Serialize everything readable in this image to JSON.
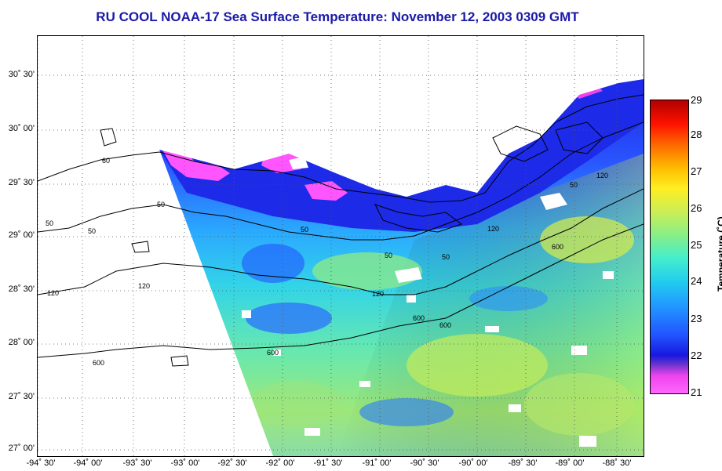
{
  "title": "RU COOL  NOAA-17  Sea Surface Temperature:  November 12, 2003 0309 GMT",
  "axes": {
    "lat_labels": [
      "30˚ 30'",
      "30˚ 00'",
      "29˚ 30'",
      "29˚ 00'",
      "28˚ 30'",
      "28˚ 00'",
      "27˚ 30'",
      "27˚ 00'"
    ],
    "lon_labels": [
      "-94˚ 30'",
      "-94˚ 00'",
      "-93˚ 30'",
      "-93˚ 00'",
      "-92˚ 30'",
      "-92˚ 00'",
      "-91˚ 30'",
      "-91˚ 00'",
      "-90˚ 30'",
      "-90˚ 00'",
      "-89˚ 30'",
      "-89˚ 00'",
      "-88˚ 30'"
    ]
  },
  "colorbar": {
    "ticks": [
      "29",
      "28",
      "27",
      "26",
      "25",
      "24",
      "23",
      "22",
      "21"
    ],
    "label": "Temperature (˚C)",
    "min": 21,
    "max": 29
  },
  "contour_labels": [
    "60",
    "50",
    "50",
    "50",
    "120",
    "50",
    "50",
    "120",
    "120",
    "600",
    "50",
    "120",
    "50",
    "120",
    "600",
    "600",
    "600",
    "600"
  ],
  "colors": {
    "title": "#1a1aa8",
    "cold": "#ff55ff",
    "cool": "#2244ff",
    "mid": "#33ccdd",
    "warm": "#ccee44",
    "land": "#ffffff"
  }
}
